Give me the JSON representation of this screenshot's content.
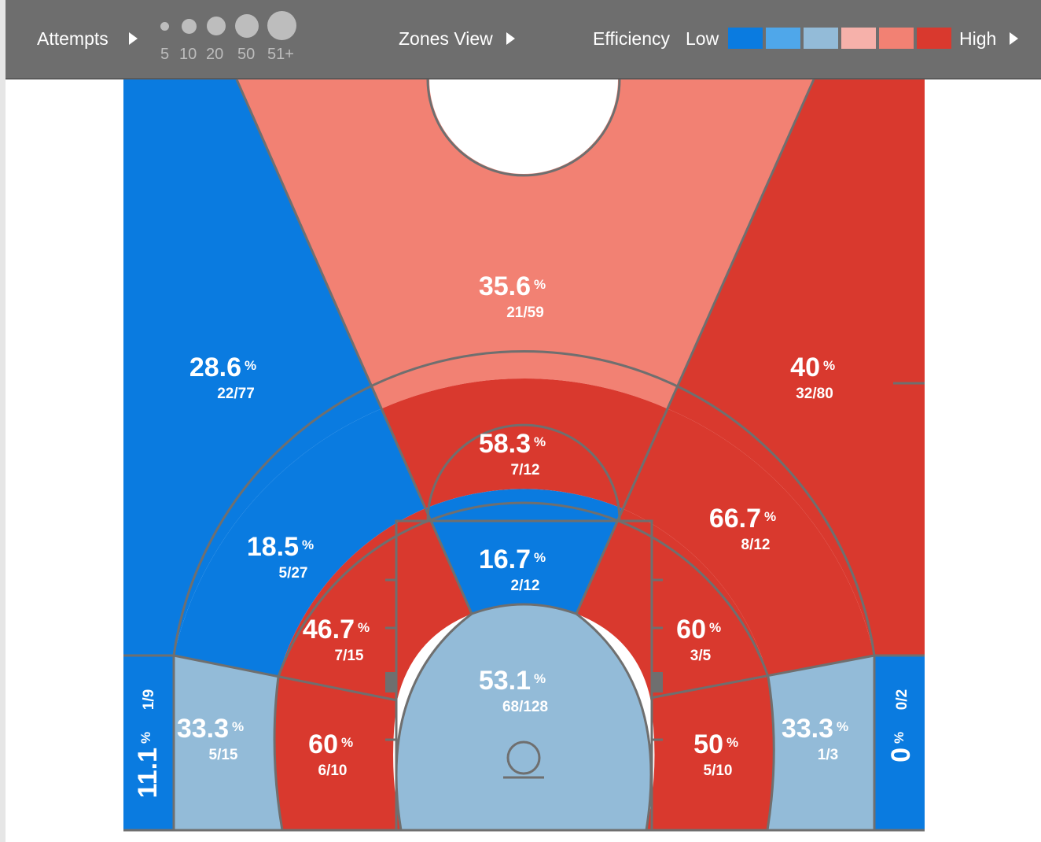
{
  "toolbar": {
    "attempts_label": "Attempts",
    "attempt_sizes": [
      "5",
      "10",
      "20",
      "50",
      "51+"
    ],
    "view_label": "Zones View",
    "efficiency_label": "Efficiency",
    "low_label": "Low",
    "high_label": "High"
  },
  "colors": {
    "low": "#0a7be0",
    "low_mid": "#4fa7ea",
    "mid_low": "#93bbd8",
    "mid_high": "#f6b1aa",
    "high_mid": "#f28173",
    "high": "#d9392e",
    "toolbar_bg": "#6e6e6e",
    "court_lines": "#6f6f6f"
  },
  "chart_data": {
    "type": "heatmap",
    "subtype": "basketball shot chart (zones view)",
    "color_scale": [
      "#0a7be0",
      "#4fa7ea",
      "#93bbd8",
      "#f6b1aa",
      "#f28173",
      "#d9392e"
    ],
    "zones": [
      {
        "id": "deep-left",
        "pct": "28.6",
        "made": 22,
        "attempts": 77,
        "frac": "22/77",
        "color": "#0a7be0"
      },
      {
        "id": "deep-center",
        "pct": "35.6",
        "made": 21,
        "attempts": 59,
        "frac": "21/59",
        "color": "#f28173"
      },
      {
        "id": "deep-right",
        "pct": "40",
        "made": 32,
        "attempts": 80,
        "frac": "32/80",
        "color": "#d9392e"
      },
      {
        "id": "mid-left-wing",
        "pct": "18.5",
        "made": 5,
        "attempts": 27,
        "frac": "5/27",
        "color": "#0a7be0"
      },
      {
        "id": "mid-top",
        "pct": "58.3",
        "made": 7,
        "attempts": 12,
        "frac": "7/12",
        "color": "#d9392e"
      },
      {
        "id": "mid-right-wing",
        "pct": "66.7",
        "made": 8,
        "attempts": 12,
        "frac": "8/12",
        "color": "#d9392e"
      },
      {
        "id": "paint-top",
        "pct": "16.7",
        "made": 2,
        "attempts": 12,
        "frac": "2/12",
        "color": "#0a7be0"
      },
      {
        "id": "inner-left-upper",
        "pct": "46.7",
        "made": 7,
        "attempts": 15,
        "frac": "7/15",
        "color": "#d9392e"
      },
      {
        "id": "inner-right-upper",
        "pct": "60",
        "made": 3,
        "attempts": 5,
        "frac": "3/5",
        "color": "#d9392e"
      },
      {
        "id": "restricted-area",
        "pct": "53.1",
        "made": 68,
        "attempts": 128,
        "frac": "68/128",
        "color": "#93bbd8"
      },
      {
        "id": "inner-left-baseline",
        "pct": "60",
        "made": 6,
        "attempts": 10,
        "frac": "6/10",
        "color": "#d9392e"
      },
      {
        "id": "inner-right-baseline",
        "pct": "50",
        "made": 5,
        "attempts": 10,
        "frac": "5/10",
        "color": "#d9392e"
      },
      {
        "id": "mid-left-baseline",
        "pct": "33.3",
        "made": 5,
        "attempts": 15,
        "frac": "5/15",
        "color": "#93bbd8"
      },
      {
        "id": "mid-right-baseline",
        "pct": "33.3",
        "made": 1,
        "attempts": 3,
        "frac": "1/3",
        "color": "#93bbd8"
      },
      {
        "id": "left-corner-three",
        "pct": "11.1",
        "made": 1,
        "attempts": 9,
        "frac": "1/9",
        "color": "#0a7be0"
      },
      {
        "id": "right-corner-three",
        "pct": "0",
        "made": 0,
        "attempts": 2,
        "frac": "0/2",
        "color": "#0a7be0"
      }
    ]
  }
}
